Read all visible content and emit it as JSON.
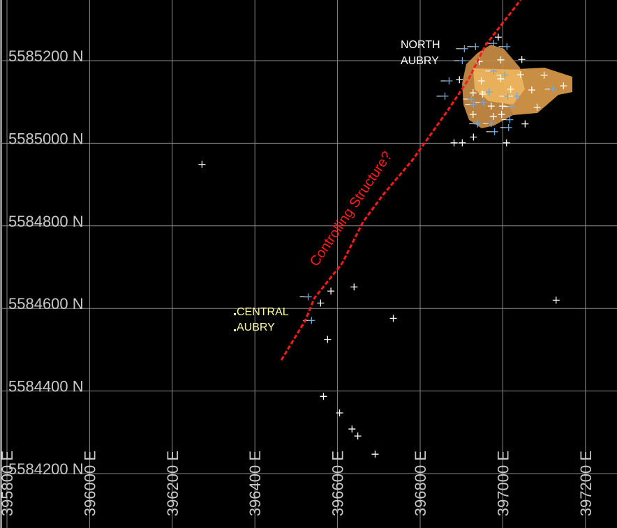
{
  "map": {
    "easting_ticks": [
      395800,
      396000,
      396200,
      396400,
      396600,
      396800,
      397000,
      397200
    ],
    "northing_ticks": [
      5584200,
      5584400,
      5584600,
      5584800,
      5585000,
      5585200
    ],
    "easting_suffix": " E",
    "northing_suffix": " N",
    "grid": true,
    "colors": {
      "background": "#000000",
      "grid": "#8a8a8a",
      "axis_text": "#c8c8c8",
      "fault": "#ff1a1a",
      "drillhole_white": "#ffffff",
      "drillhole_blue": "#6fa8dc",
      "orebody": "#e0a050",
      "north_label": "#ffffff",
      "central_label": "#ffff99"
    },
    "labels": {
      "north_aubry_line1": "NORTH",
      "north_aubry_line2": "AUBRY",
      "central_aubry_line1": "CENTRAL",
      "central_aubry_line2": "AUBRY",
      "fault": "Controlling Structure?"
    },
    "fault_trace": [
      [
        396464,
        5584475
      ],
      [
        396522,
        5584571
      ],
      [
        396544,
        5584625
      ],
      [
        396611,
        5584709
      ],
      [
        396662,
        5584810
      ],
      [
        396710,
        5584875
      ],
      [
        396781,
        5584959
      ],
      [
        396865,
        5585077
      ],
      [
        396916,
        5585153
      ],
      [
        396958,
        5585237
      ],
      [
        397043,
        5585347
      ]
    ],
    "drillholes_white": [
      [
        396584,
        5584642
      ],
      [
        396640,
        5584652
      ],
      [
        396559,
        5584613
      ],
      [
        396576,
        5584525
      ],
      [
        396735,
        5584576
      ],
      [
        397129,
        5584620
      ],
      [
        396566,
        5584387
      ],
      [
        396605,
        5584347
      ],
      [
        396635,
        5584308
      ],
      [
        396649,
        5584291
      ],
      [
        396691,
        5584247
      ],
      [
        396272,
        5584949
      ],
      [
        396989,
        5585257
      ],
      [
        396995,
        5585202
      ],
      [
        397046,
        5585203
      ],
      [
        396895,
        5585154
      ],
      [
        396948,
        5585151
      ],
      [
        396995,
        5585156
      ],
      [
        397043,
        5585166
      ],
      [
        397100,
        5585165
      ],
      [
        397147,
        5585139
      ],
      [
        397070,
        5585129
      ],
      [
        397019,
        5585131
      ],
      [
        396928,
        5585122
      ],
      [
        396951,
        5585119
      ],
      [
        396972,
        5585090
      ],
      [
        396999,
        5585090
      ],
      [
        397083,
        5585087
      ],
      [
        396928,
        5585070
      ],
      [
        396977,
        5585065
      ],
      [
        396997,
        5585070
      ],
      [
        397054,
        5585047
      ],
      [
        396929,
        5585015
      ],
      [
        396882,
        5585001
      ],
      [
        396902,
        5585001
      ],
      [
        397009,
        5585001
      ],
      [
        396943,
        5585198
      ]
    ],
    "drillholes_blue": [
      [
        396529,
        5584628
      ],
      [
        396537,
        5584571
      ],
      [
        396907,
        5585229
      ],
      [
        396934,
        5585234
      ],
      [
        397010,
        5585234
      ],
      [
        396978,
        5585242
      ],
      [
        396902,
        5585200
      ],
      [
        396870,
        5585151
      ],
      [
        396860,
        5585114
      ],
      [
        396978,
        5585175
      ],
      [
        397005,
        5585165
      ],
      [
        396924,
        5585107
      ],
      [
        396953,
        5585099
      ],
      [
        396967,
        5585124
      ],
      [
        397012,
        5585114
      ],
      [
        397034,
        5585114
      ],
      [
        397022,
        5585089
      ],
      [
        396929,
        5585094
      ],
      [
        397017,
        5585057
      ],
      [
        396939,
        5585047
      ],
      [
        396972,
        5585048
      ],
      [
        397014,
        5585038
      ],
      [
        396980,
        5585028
      ],
      [
        397122,
        5585131
      ]
    ]
  }
}
